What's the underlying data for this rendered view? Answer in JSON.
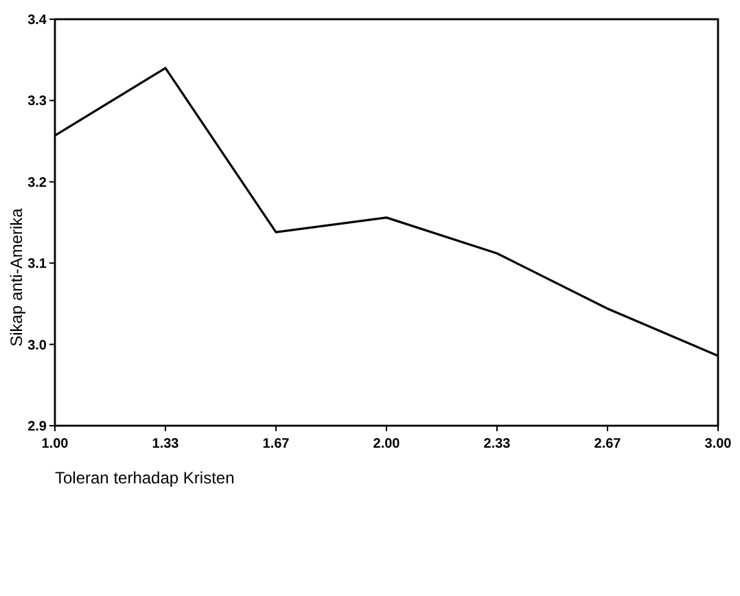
{
  "chart_data": {
    "type": "line",
    "xlabel": "Toleran terhadap Kristen",
    "ylabel": "Sikap anti-Amerika",
    "categories": [
      "1.00",
      "1.33",
      "1.67",
      "2.00",
      "2.33",
      "2.67",
      "3.00"
    ],
    "series": [
      {
        "color": "#000000",
        "values": [
          3.257,
          3.34,
          3.138,
          3.156,
          3.112,
          3.044,
          2.986
        ]
      }
    ],
    "ylim": [
      2.9,
      3.4
    ],
    "yticks": [
      {
        "value": 2.9,
        "label": "2.9"
      },
      {
        "value": 3.0,
        "label": "3.0"
      },
      {
        "value": 3.1,
        "label": "3.1"
      },
      {
        "value": 3.2,
        "label": "3.2"
      },
      {
        "value": 3.3,
        "label": "3.3"
      },
      {
        "value": 3.4,
        "label": "3.4"
      }
    ],
    "grid": false,
    "marker": "none",
    "line_style": "solid"
  }
}
